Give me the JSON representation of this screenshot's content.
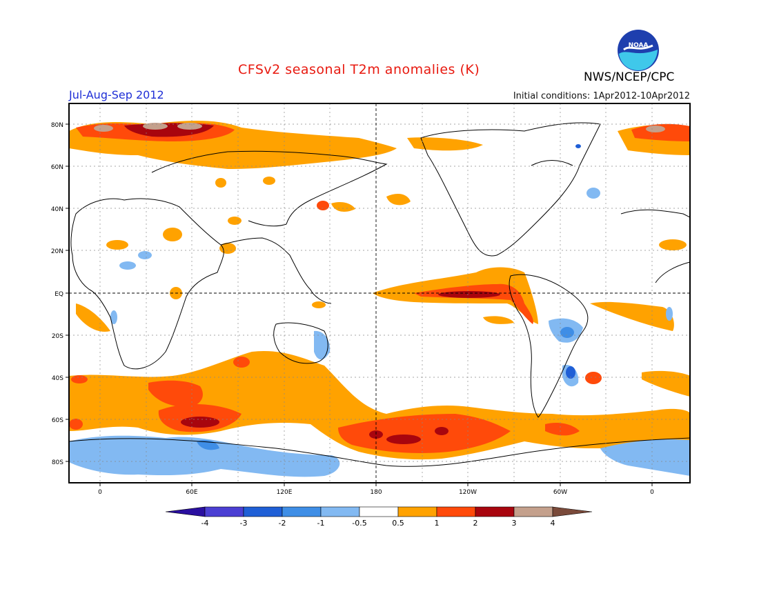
{
  "header": {
    "title": "CFSv2 seasonal T2m anomalies (K)",
    "period": "Jul-Aug-Sep 2012",
    "initial_conditions": "Initial conditions: 1Apr2012-10Apr2012",
    "agency": "NWS/NCEP/CPC",
    "logo_text": "NOAA"
  },
  "map": {
    "lat_labels": [
      "80N",
      "60N",
      "40N",
      "20N",
      "EQ",
      "20S",
      "40S",
      "60S",
      "80S"
    ],
    "lon_labels": [
      "0",
      "60E",
      "120E",
      "180",
      "120W",
      "60W",
      "0"
    ]
  },
  "colorbar": {
    "tick_labels": [
      "-4",
      "-3",
      "-2",
      "-1",
      "-0.5",
      "0.5",
      "1",
      "2",
      "3",
      "4"
    ],
    "colors": [
      "#2a0fa0",
      "#4b3fd3",
      "#1f5fd6",
      "#3f8ee6",
      "#82b9f2",
      "#ffffff",
      "#ffa200",
      "#ff4a0a",
      "#a8050e",
      "#c4a08c",
      "#7a4a3a"
    ]
  }
}
